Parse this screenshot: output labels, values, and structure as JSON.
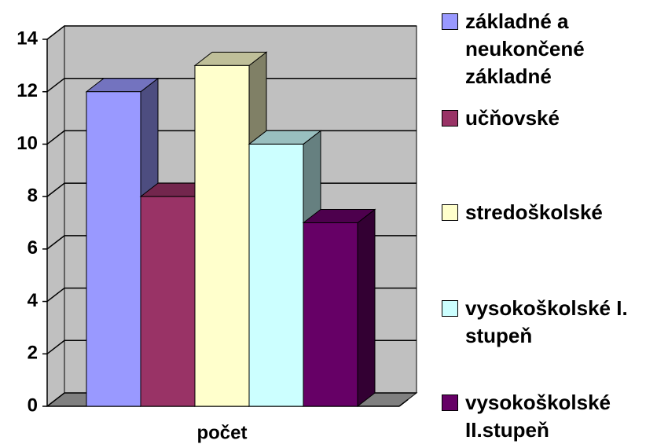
{
  "chart_data": {
    "type": "bar3d",
    "categories": [
      "počet"
    ],
    "series": [
      {
        "name": "základné a neukončené základné",
        "color": "#9999ff",
        "values": [
          12
        ]
      },
      {
        "name": "učňovské",
        "color": "#993366",
        "values": [
          8
        ]
      },
      {
        "name": "stredoškolské",
        "color": "#ffffcc",
        "values": [
          13
        ]
      },
      {
        "name": "vysokoškolské I. stupeň",
        "color": "#ccffff",
        "values": [
          10
        ]
      },
      {
        "name": "vysokoškolské II.stupeň",
        "color": "#660066",
        "values": [
          7
        ]
      }
    ],
    "ylim": [
      0,
      14
    ],
    "yticks": [
      0,
      2,
      4,
      6,
      8,
      10,
      12,
      14
    ],
    "grid": true,
    "legend": "right"
  }
}
